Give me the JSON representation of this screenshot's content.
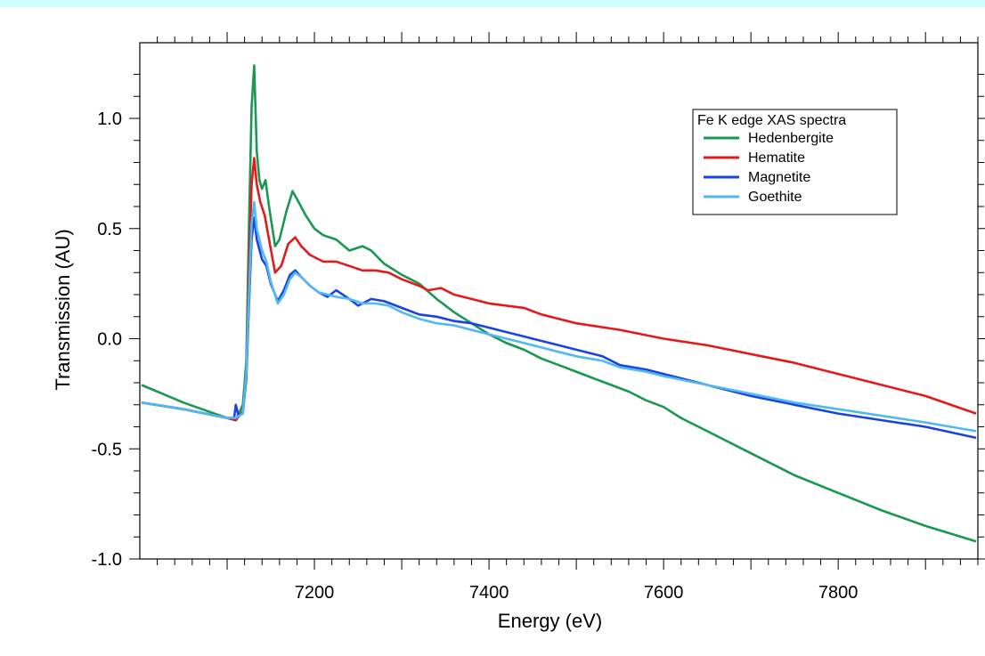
{
  "chart_data": {
    "type": "line",
    "title": "",
    "xlabel": "Energy (eV)",
    "ylabel": "Transmission (AU)",
    "xlim": [
      7000,
      7960
    ],
    "ylim": [
      -1.0,
      1.25
    ],
    "x_ticks": [
      7200,
      7400,
      7600,
      7800
    ],
    "y_ticks": [
      1.0,
      0.5,
      0.0,
      -0.5,
      -1.0
    ],
    "y_tick_labels": [
      "1.0",
      "0.5",
      "0.0",
      "-0.5",
      "-1.0"
    ],
    "grid": false,
    "legend": {
      "title": "Fe K edge XAS spectra",
      "placement": "top-right"
    },
    "series": [
      {
        "name": "Hedenbergite",
        "color": "#1a9850",
        "points": [
          [
            7002,
            -0.21
          ],
          [
            7050,
            -0.29
          ],
          [
            7100,
            -0.36
          ],
          [
            7110,
            -0.37
          ],
          [
            7118,
            -0.3
          ],
          [
            7122,
            -0.1
          ],
          [
            7125,
            0.5
          ],
          [
            7128,
            1.05
          ],
          [
            7131,
            1.24
          ],
          [
            7134,
            0.85
          ],
          [
            7137,
            0.72
          ],
          [
            7140,
            0.68
          ],
          [
            7144,
            0.72
          ],
          [
            7148,
            0.6
          ],
          [
            7155,
            0.42
          ],
          [
            7160,
            0.45
          ],
          [
            7168,
            0.58
          ],
          [
            7175,
            0.67
          ],
          [
            7182,
            0.62
          ],
          [
            7190,
            0.56
          ],
          [
            7200,
            0.5
          ],
          [
            7210,
            0.47
          ],
          [
            7225,
            0.45
          ],
          [
            7240,
            0.4
          ],
          [
            7255,
            0.42
          ],
          [
            7265,
            0.4
          ],
          [
            7280,
            0.34
          ],
          [
            7300,
            0.29
          ],
          [
            7320,
            0.25
          ],
          [
            7340,
            0.18
          ],
          [
            7360,
            0.12
          ],
          [
            7380,
            0.07
          ],
          [
            7400,
            0.02
          ],
          [
            7420,
            -0.02
          ],
          [
            7440,
            -0.05
          ],
          [
            7460,
            -0.09
          ],
          [
            7480,
            -0.12
          ],
          [
            7500,
            -0.15
          ],
          [
            7520,
            -0.18
          ],
          [
            7540,
            -0.21
          ],
          [
            7560,
            -0.24
          ],
          [
            7580,
            -0.28
          ],
          [
            7600,
            -0.31
          ],
          [
            7620,
            -0.36
          ],
          [
            7650,
            -0.42
          ],
          [
            7700,
            -0.52
          ],
          [
            7750,
            -0.62
          ],
          [
            7800,
            -0.7
          ],
          [
            7850,
            -0.78
          ],
          [
            7900,
            -0.85
          ],
          [
            7958,
            -0.92
          ]
        ]
      },
      {
        "name": "Hematite",
        "color": "#e31a1c",
        "points": [
          [
            7002,
            -0.29
          ],
          [
            7050,
            -0.32
          ],
          [
            7100,
            -0.36
          ],
          [
            7110,
            -0.37
          ],
          [
            7118,
            -0.33
          ],
          [
            7122,
            -0.15
          ],
          [
            7125,
            0.3
          ],
          [
            7128,
            0.7
          ],
          [
            7131,
            0.82
          ],
          [
            7134,
            0.7
          ],
          [
            7138,
            0.62
          ],
          [
            7143,
            0.56
          ],
          [
            7148,
            0.45
          ],
          [
            7155,
            0.3
          ],
          [
            7162,
            0.33
          ],
          [
            7170,
            0.43
          ],
          [
            7178,
            0.46
          ],
          [
            7185,
            0.42
          ],
          [
            7195,
            0.38
          ],
          [
            7210,
            0.35
          ],
          [
            7225,
            0.35
          ],
          [
            7240,
            0.33
          ],
          [
            7255,
            0.31
          ],
          [
            7270,
            0.31
          ],
          [
            7285,
            0.3
          ],
          [
            7300,
            0.27
          ],
          [
            7320,
            0.24
          ],
          [
            7330,
            0.22
          ],
          [
            7345,
            0.23
          ],
          [
            7360,
            0.2
          ],
          [
            7380,
            0.18
          ],
          [
            7400,
            0.16
          ],
          [
            7420,
            0.15
          ],
          [
            7440,
            0.14
          ],
          [
            7460,
            0.11
          ],
          [
            7480,
            0.09
          ],
          [
            7500,
            0.07
          ],
          [
            7550,
            0.04
          ],
          [
            7600,
            0.0
          ],
          [
            7650,
            -0.03
          ],
          [
            7700,
            -0.07
          ],
          [
            7750,
            -0.11
          ],
          [
            7800,
            -0.16
          ],
          [
            7850,
            -0.21
          ],
          [
            7900,
            -0.26
          ],
          [
            7958,
            -0.34
          ]
        ]
      },
      {
        "name": "Magnetite",
        "color": "#1a44e0",
        "points": [
          [
            7002,
            -0.29
          ],
          [
            7050,
            -0.32
          ],
          [
            7100,
            -0.36
          ],
          [
            7108,
            -0.36
          ],
          [
            7110,
            -0.3
          ],
          [
            7113,
            -0.35
          ],
          [
            7118,
            -0.34
          ],
          [
            7122,
            -0.18
          ],
          [
            7125,
            0.15
          ],
          [
            7128,
            0.45
          ],
          [
            7131,
            0.55
          ],
          [
            7134,
            0.45
          ],
          [
            7140,
            0.36
          ],
          [
            7145,
            0.33
          ],
          [
            7150,
            0.25
          ],
          [
            7158,
            0.17
          ],
          [
            7165,
            0.22
          ],
          [
            7172,
            0.29
          ],
          [
            7178,
            0.31
          ],
          [
            7185,
            0.28
          ],
          [
            7195,
            0.24
          ],
          [
            7205,
            0.21
          ],
          [
            7215,
            0.19
          ],
          [
            7225,
            0.22
          ],
          [
            7240,
            0.18
          ],
          [
            7250,
            0.15
          ],
          [
            7265,
            0.18
          ],
          [
            7280,
            0.17
          ],
          [
            7300,
            0.14
          ],
          [
            7320,
            0.11
          ],
          [
            7340,
            0.1
          ],
          [
            7360,
            0.08
          ],
          [
            7380,
            0.07
          ],
          [
            7400,
            0.05
          ],
          [
            7420,
            0.03
          ],
          [
            7440,
            0.01
          ],
          [
            7460,
            -0.01
          ],
          [
            7480,
            -0.03
          ],
          [
            7500,
            -0.05
          ],
          [
            7530,
            -0.08
          ],
          [
            7550,
            -0.12
          ],
          [
            7580,
            -0.14
          ],
          [
            7600,
            -0.16
          ],
          [
            7650,
            -0.21
          ],
          [
            7700,
            -0.26
          ],
          [
            7750,
            -0.3
          ],
          [
            7800,
            -0.34
          ],
          [
            7850,
            -0.37
          ],
          [
            7900,
            -0.4
          ],
          [
            7958,
            -0.45
          ]
        ]
      },
      {
        "name": "Goethite",
        "color": "#4fb9f0",
        "points": [
          [
            7002,
            -0.29
          ],
          [
            7050,
            -0.32
          ],
          [
            7100,
            -0.36
          ],
          [
            7110,
            -0.36
          ],
          [
            7118,
            -0.34
          ],
          [
            7122,
            -0.15
          ],
          [
            7125,
            0.2
          ],
          [
            7128,
            0.52
          ],
          [
            7131,
            0.62
          ],
          [
            7134,
            0.5
          ],
          [
            7140,
            0.4
          ],
          [
            7145,
            0.35
          ],
          [
            7150,
            0.26
          ],
          [
            7158,
            0.16
          ],
          [
            7165,
            0.2
          ],
          [
            7172,
            0.27
          ],
          [
            7178,
            0.3
          ],
          [
            7185,
            0.28
          ],
          [
            7195,
            0.24
          ],
          [
            7205,
            0.21
          ],
          [
            7215,
            0.2
          ],
          [
            7225,
            0.19
          ],
          [
            7240,
            0.18
          ],
          [
            7255,
            0.16
          ],
          [
            7270,
            0.16
          ],
          [
            7285,
            0.15
          ],
          [
            7300,
            0.12
          ],
          [
            7320,
            0.09
          ],
          [
            7340,
            0.07
          ],
          [
            7360,
            0.06
          ],
          [
            7380,
            0.04
          ],
          [
            7400,
            0.02
          ],
          [
            7420,
            0.0
          ],
          [
            7440,
            -0.02
          ],
          [
            7460,
            -0.04
          ],
          [
            7480,
            -0.06
          ],
          [
            7500,
            -0.08
          ],
          [
            7530,
            -0.1
          ],
          [
            7550,
            -0.13
          ],
          [
            7580,
            -0.15
          ],
          [
            7600,
            -0.17
          ],
          [
            7650,
            -0.21
          ],
          [
            7700,
            -0.25
          ],
          [
            7750,
            -0.29
          ],
          [
            7800,
            -0.32
          ],
          [
            7850,
            -0.35
          ],
          [
            7900,
            -0.38
          ],
          [
            7958,
            -0.42
          ]
        ]
      }
    ]
  }
}
